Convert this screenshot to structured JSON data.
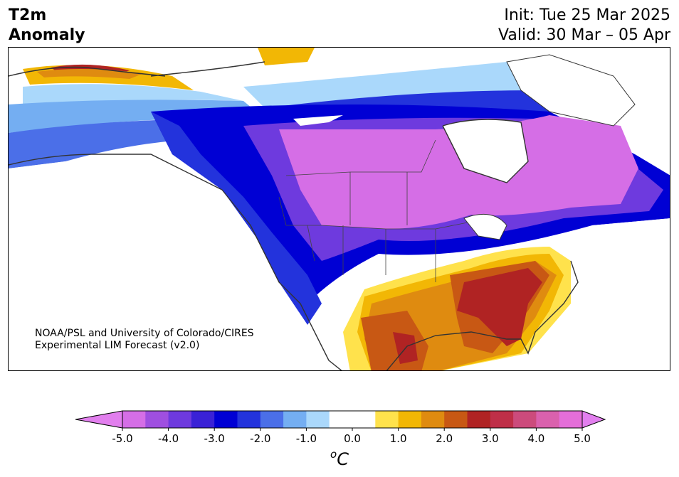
{
  "title": {
    "line1": "T2m",
    "line2": "Anomaly"
  },
  "run": {
    "init": "Init: Tue 25 Mar 2025",
    "valid": "Valid: 30 Mar – 05 Apr"
  },
  "credit": {
    "line1": "NOAA/PSL and University of Colorado/CIRES",
    "line2": "Experimental LIM Forecast (v2.0)"
  },
  "colorbar": {
    "unit_main": "C",
    "unit_sup": "o",
    "colors": [
      "#d56ee6",
      "#9f4fe0",
      "#6e3ade",
      "#3a22d6",
      "#0000d4",
      "#2333dc",
      "#4b6fe8",
      "#74aef2",
      "#aad8fb",
      "#ffffff",
      "#ffffff",
      "#ffe24c",
      "#f2b705",
      "#df8b10",
      "#c85814",
      "#b02323",
      "#bf2f48",
      "#cc4b7c",
      "#da61ad",
      "#e46ed9"
    ],
    "extend_low_color": "#e27fee",
    "extend_high_color": "#e27fee",
    "ticks": [
      "-5.0",
      "-4.0",
      "-3.0",
      "-2.0",
      "-1.0",
      "0.0",
      "1.0",
      "2.0",
      "3.0",
      "4.0",
      "5.0"
    ],
    "range": [
      -5.0,
      5.0
    ]
  },
  "map": {
    "projection": "lambert-conformal-north-america",
    "coastline_color": "#333333",
    "land_background": "#ffffff"
  }
}
